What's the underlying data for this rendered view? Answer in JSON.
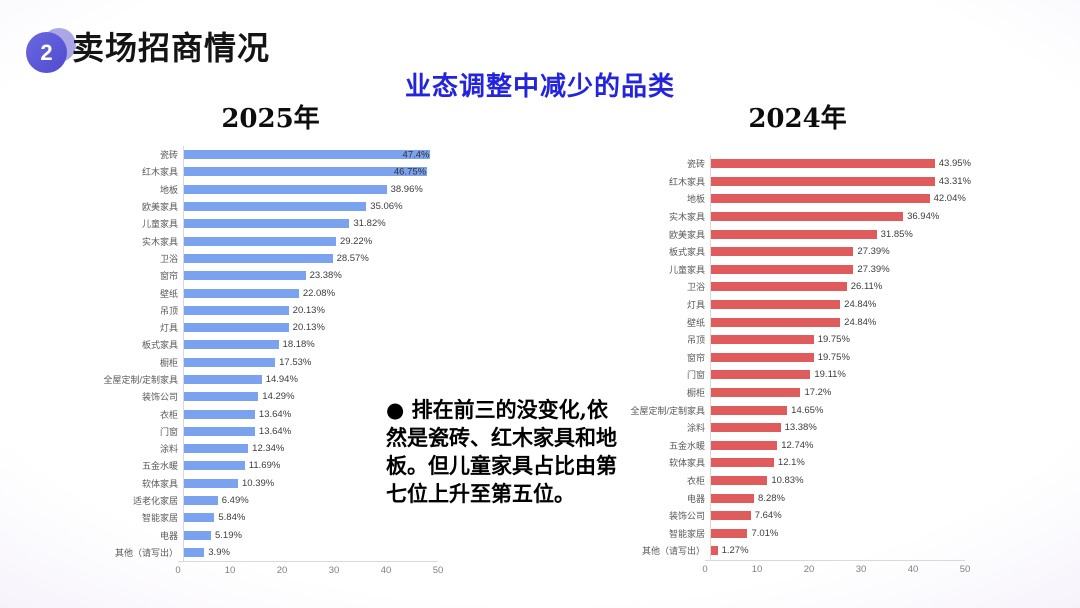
{
  "header": {
    "badge": "2",
    "title": "卖场招商情况"
  },
  "subtitle": "业态调整中减少的品类",
  "annotation": "● 排在前三的没变化,依然是瓷砖、红木家具和地板。但儿童家具占比由第七位上升至第五位。",
  "colors": {
    "badge_purple": "#5551d0",
    "badge_light_purple": "#aba7e7",
    "subtitle_blue": "#2424dc",
    "bar_blue_2025": "#7ba2ef",
    "bar_red_2024": "#e05c5c",
    "axis_gray": "#d9d9d9",
    "background_lavender": "#d9d3ec"
  },
  "chart_data": [
    {
      "type": "bar",
      "orientation": "horizontal",
      "title": "2025年",
      "color": "#7ba2ef",
      "xlim": [
        0,
        50
      ],
      "x_ticks": [
        0,
        10,
        20,
        30,
        40,
        50
      ],
      "grid": false,
      "label_inside_above": 45,
      "categories": [
        "瓷砖",
        "红木家具",
        "地板",
        "欧美家具",
        "儿童家具",
        "实木家具",
        "卫浴",
        "窗帘",
        "壁纸",
        "吊顶",
        "灯具",
        "板式家具",
        "橱柜",
        "全屋定制/定制家具",
        "装饰公司",
        "衣柜",
        "门窗",
        "涂料",
        "五金水暖",
        "软体家具",
        "适老化家居",
        "智能家居",
        "电器",
        "其他（请写出）"
      ],
      "values": [
        47.4,
        46.75,
        38.96,
        35.06,
        31.82,
        29.22,
        28.57,
        23.38,
        22.08,
        20.13,
        20.13,
        18.18,
        17.53,
        14.94,
        14.29,
        13.64,
        13.64,
        12.34,
        11.69,
        10.39,
        6.49,
        5.84,
        5.19,
        3.9
      ],
      "labels": [
        "47.4%",
        "46.75%",
        "38.96%",
        "35.06%",
        "31.82%",
        "29.22%",
        "28.57%",
        "23.38%",
        "22.08%",
        "20.13%",
        "20.13%",
        "18.18%",
        "17.53%",
        "14.94%",
        "14.29%",
        "13.64%",
        "13.64%",
        "12.34%",
        "11.69%",
        "10.39%",
        "6.49%",
        "5.84%",
        "5.19%",
        "3.9%"
      ]
    },
    {
      "type": "bar",
      "orientation": "horizontal",
      "title": "2024年",
      "color": "#e05c5c",
      "xlim": [
        0,
        50
      ],
      "x_ticks": [
        0,
        10,
        20,
        30,
        40,
        50
      ],
      "grid": false,
      "label_inside_above": 100,
      "categories": [
        "瓷砖",
        "红木家具",
        "地板",
        "实木家具",
        "欧美家具",
        "板式家具",
        "儿童家具",
        "卫浴",
        "灯具",
        "壁纸",
        "吊顶",
        "窗帘",
        "门窗",
        "橱柜",
        "全屋定制/定制家具",
        "涂料",
        "五金水暖",
        "软体家具",
        "衣柜",
        "电器",
        "装饰公司",
        "智能家居",
        "其他（请写出）"
      ],
      "values": [
        43.95,
        43.31,
        42.04,
        36.94,
        31.85,
        27.39,
        27.39,
        26.11,
        24.84,
        24.84,
        19.75,
        19.75,
        19.11,
        17.2,
        14.65,
        13.38,
        12.74,
        12.1,
        10.83,
        8.28,
        7.64,
        7.01,
        1.27
      ],
      "labels": [
        "43.95%",
        "43.31%",
        "42.04%",
        "36.94%",
        "31.85%",
        "27.39%",
        "27.39%",
        "26.11%",
        "24.84%",
        "24.84%",
        "19.75%",
        "19.75%",
        "19.11%",
        "17.2%",
        "14.65%",
        "13.38%",
        "12.74%",
        "12.1%",
        "10.83%",
        "8.28%",
        "7.64%",
        "7.01%",
        "1.27%"
      ]
    }
  ]
}
